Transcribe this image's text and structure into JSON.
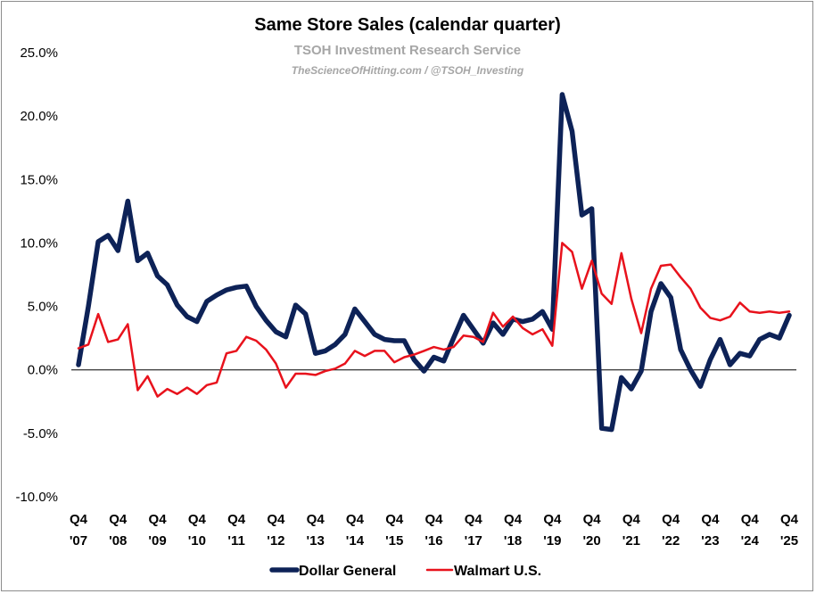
{
  "chart_data": {
    "type": "line",
    "title": "Same Store Sales (calendar quarter)",
    "subtitle": "TSOH Investment Research Service",
    "credit": "TheScienceOfHitting.com / @TSOH_Investing",
    "xlabel": "",
    "ylabel": "",
    "ylim": [
      -10,
      25
    ],
    "y_tick_values": [
      -10,
      -5,
      0,
      5,
      10,
      15,
      20,
      25
    ],
    "y_tick_labels": [
      "-10.0%",
      "-5.0%",
      "0.0%",
      "5.0%",
      "10.0%",
      "15.0%",
      "20.0%",
      "25.0%"
    ],
    "x_tick_labels": [
      {
        "top": "Q4",
        "bottom": "'07"
      },
      {
        "top": "Q4",
        "bottom": "'08"
      },
      {
        "top": "Q4",
        "bottom": "'09"
      },
      {
        "top": "Q4",
        "bottom": "'10"
      },
      {
        "top": "Q4",
        "bottom": "'11"
      },
      {
        "top": "Q4",
        "bottom": "'12"
      },
      {
        "top": "Q4",
        "bottom": "'13"
      },
      {
        "top": "Q4",
        "bottom": "'14"
      },
      {
        "top": "Q4",
        "bottom": "'15"
      },
      {
        "top": "Q4",
        "bottom": "'16"
      },
      {
        "top": "Q4",
        "bottom": "'17"
      },
      {
        "top": "Q4",
        "bottom": "'18"
      },
      {
        "top": "Q4",
        "bottom": "'19"
      },
      {
        "top": "Q4",
        "bottom": "'20"
      },
      {
        "top": "Q4",
        "bottom": "'21"
      },
      {
        "top": "Q4",
        "bottom": "'22"
      },
      {
        "top": "Q4",
        "bottom": "'23"
      },
      {
        "top": "Q4",
        "bottom": "'24"
      },
      {
        "top": "Q4",
        "bottom": "'25"
      }
    ],
    "grid": false,
    "legend_position": "bottom",
    "series": [
      {
        "name": "Dollar General",
        "color": "#0d2257",
        "values": [
          0.4,
          5.0,
          10.1,
          10.6,
          9.4,
          13.3,
          8.6,
          9.2,
          7.4,
          6.7,
          5.1,
          4.2,
          3.8,
          5.4,
          5.9,
          6.3,
          6.5,
          6.6,
          5.0,
          3.9,
          3.0,
          2.6,
          5.1,
          4.4,
          1.3,
          1.5,
          2.0,
          2.8,
          4.8,
          3.8,
          2.8,
          2.4,
          2.3,
          2.3,
          0.8,
          -0.1,
          1.0,
          0.7,
          2.5,
          4.3,
          3.2,
          2.1,
          3.7,
          2.8,
          4.0,
          3.8,
          4.0,
          4.6,
          3.2,
          21.7,
          18.8,
          12.2,
          12.7,
          -4.6,
          -4.7,
          -0.6,
          -1.5,
          -0.1,
          4.6,
          6.8,
          5.7,
          1.6,
          0.0,
          -1.3,
          0.8,
          2.4,
          0.4,
          1.3,
          1.1,
          2.4,
          2.8,
          2.5,
          4.3
        ]
      },
      {
        "name": "Walmart U.S.",
        "color": "#e8121c",
        "values": [
          1.7,
          2.0,
          4.4,
          2.2,
          2.4,
          3.6,
          -1.6,
          -0.5,
          -2.1,
          -1.5,
          -1.9,
          -1.4,
          -1.9,
          -1.2,
          -1.0,
          1.3,
          1.5,
          2.6,
          2.3,
          1.6,
          0.5,
          -1.4,
          -0.3,
          -0.3,
          -0.4,
          -0.1,
          0.1,
          0.5,
          1.5,
          1.1,
          1.5,
          1.5,
          0.6,
          1.0,
          1.2,
          1.5,
          1.8,
          1.6,
          1.8,
          2.7,
          2.6,
          2.2,
          4.5,
          3.4,
          4.2,
          3.3,
          2.8,
          3.2,
          1.9,
          10.0,
          9.3,
          6.4,
          8.6,
          6.0,
          5.2,
          9.2,
          5.6,
          2.9,
          6.4,
          8.2,
          8.3,
          7.3,
          6.4,
          4.9,
          4.1,
          3.9,
          4.2,
          5.3,
          4.6,
          4.5,
          4.6,
          4.5,
          4.6
        ]
      }
    ]
  }
}
